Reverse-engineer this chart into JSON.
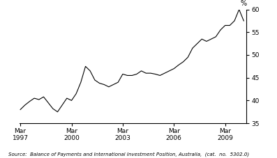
{
  "title": "",
  "ylabel": "%",
  "source_text": "Source:  Balance of Payments and International Investment Position, Australia,  (cat.  no.  5302.0)",
  "ylim": [
    35,
    60
  ],
  "yticks": [
    35,
    40,
    45,
    50,
    55,
    60
  ],
  "xtick_positions": [
    1997.208,
    1999.958,
    2002.708,
    2005.458,
    2008.208
  ],
  "xtick_labels": [
    "Mar\n1997",
    "Mar\n2000",
    "Mar\n2003",
    "Mar\n2006",
    "Mar\n2009"
  ],
  "line_color": "#000000",
  "background_color": "#ffffff",
  "x": [
    1997.208,
    1997.458,
    1997.708,
    1997.958,
    1998.208,
    1998.458,
    1998.708,
    1998.958,
    1999.208,
    1999.458,
    1999.708,
    1999.958,
    2000.208,
    2000.458,
    2000.708,
    2000.958,
    2001.208,
    2001.458,
    2001.708,
    2001.958,
    2002.208,
    2002.458,
    2002.708,
    2002.958,
    2003.208,
    2003.458,
    2003.708,
    2003.958,
    2004.208,
    2004.458,
    2004.708,
    2004.958,
    2005.208,
    2005.458,
    2005.708,
    2005.958,
    2006.208,
    2006.458,
    2006.708,
    2006.958,
    2007.208,
    2007.458,
    2007.708,
    2007.958,
    2008.208,
    2008.458,
    2008.708,
    2008.958,
    2009.208
  ],
  "y": [
    38.0,
    39.0,
    39.8,
    40.5,
    40.2,
    40.8,
    39.5,
    38.2,
    37.5,
    39.0,
    40.5,
    40.0,
    41.5,
    44.0,
    47.5,
    46.5,
    44.5,
    43.8,
    43.5,
    43.0,
    43.5,
    44.0,
    45.8,
    45.5,
    45.5,
    45.8,
    46.5,
    46.0,
    46.0,
    45.8,
    45.5,
    46.0,
    46.5,
    47.0,
    47.8,
    48.5,
    49.5,
    51.5,
    52.5,
    53.5,
    53.0,
    53.5,
    54.0,
    55.5,
    56.5,
    56.5,
    57.5,
    60.0,
    57.5
  ]
}
